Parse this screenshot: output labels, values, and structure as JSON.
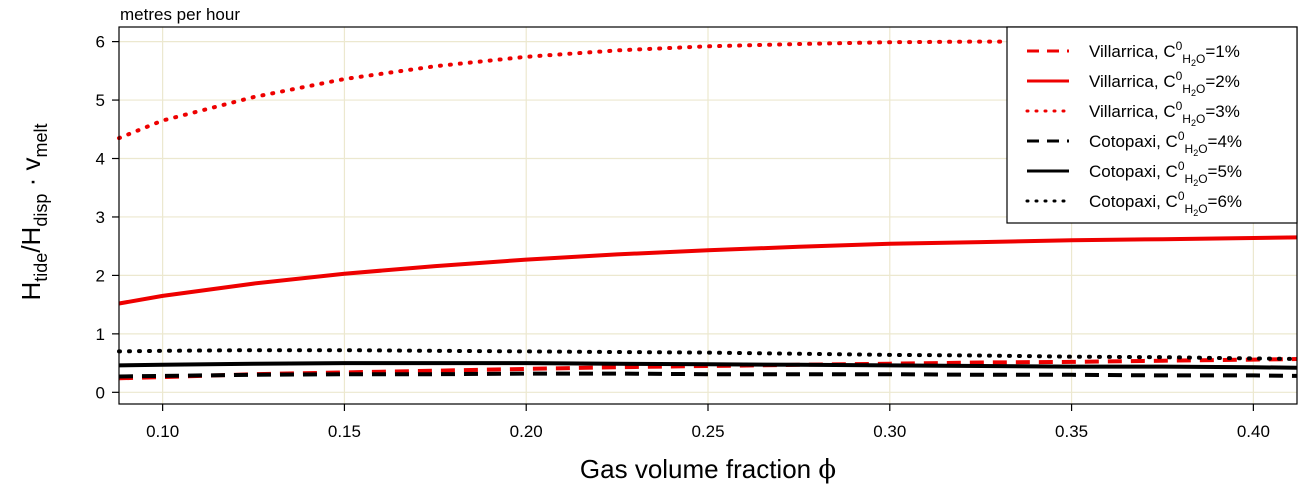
{
  "chart_data": {
    "type": "line",
    "unit_note": "metres per hour",
    "xlabel": {
      "text": "Gas volume fraction ",
      "symbol": "ϕ"
    },
    "ylabel": {
      "H": "H",
      "tide": "tide",
      "slash": "/H",
      "disp": "disp",
      "dot": " · v",
      "melt": "melt"
    },
    "xlim": [
      0.088,
      0.412
    ],
    "ylim": [
      -0.2,
      6.25
    ],
    "x_ticks": [
      0.1,
      0.15,
      0.2,
      0.25,
      0.3,
      0.35,
      0.4
    ],
    "x_tick_labels": [
      "0.10",
      "0.15",
      "0.20",
      "0.25",
      "0.30",
      "0.35",
      "0.40"
    ],
    "y_ticks": [
      0,
      1,
      2,
      3,
      4,
      5,
      6
    ],
    "y_tick_labels": [
      "0",
      "1",
      "2",
      "3",
      "4",
      "5",
      "6"
    ],
    "grid": true,
    "legend_position": "top-right",
    "x": [
      0.088,
      0.1,
      0.125,
      0.15,
      0.175,
      0.2,
      0.225,
      0.25,
      0.275,
      0.3,
      0.325,
      0.35,
      0.375,
      0.4,
      0.412
    ],
    "series": [
      {
        "volcano": "Villarrica",
        "pct": "1%",
        "color": "#ee0000",
        "dash": "14,9",
        "values": [
          0.24,
          0.26,
          0.31,
          0.34,
          0.37,
          0.4,
          0.43,
          0.45,
          0.47,
          0.49,
          0.51,
          0.52,
          0.54,
          0.56,
          0.57
        ]
      },
      {
        "volcano": "Villarrica",
        "pct": "2%",
        "color": "#ee0000",
        "dash": "",
        "values": [
          1.52,
          1.65,
          1.86,
          2.03,
          2.16,
          2.27,
          2.36,
          2.43,
          2.49,
          2.54,
          2.57,
          2.6,
          2.62,
          2.64,
          2.65
        ]
      },
      {
        "volcano": "Villarrica",
        "pct": "3%",
        "color": "#ee0000",
        "dash": "1,9",
        "values": [
          4.35,
          4.65,
          5.05,
          5.36,
          5.58,
          5.74,
          5.85,
          5.92,
          5.96,
          5.99,
          6.0,
          6.0,
          6.0,
          6.0,
          6.0
        ]
      },
      {
        "volcano": "Cotopaxi",
        "pct": "4%",
        "color": "#000000",
        "dash": "14,9",
        "values": [
          0.27,
          0.28,
          0.3,
          0.31,
          0.31,
          0.32,
          0.32,
          0.31,
          0.31,
          0.31,
          0.3,
          0.3,
          0.29,
          0.29,
          0.28
        ]
      },
      {
        "volcano": "Cotopaxi",
        "pct": "5%",
        "color": "#000000",
        "dash": "",
        "values": [
          0.46,
          0.47,
          0.49,
          0.5,
          0.5,
          0.5,
          0.49,
          0.48,
          0.47,
          0.46,
          0.45,
          0.44,
          0.44,
          0.43,
          0.42
        ]
      },
      {
        "volcano": "Cotopaxi",
        "pct": "6%",
        "color": "#000000",
        "dash": "1,9",
        "values": [
          0.7,
          0.71,
          0.72,
          0.72,
          0.71,
          0.7,
          0.69,
          0.68,
          0.66,
          0.64,
          0.63,
          0.61,
          0.6,
          0.58,
          0.57
        ]
      }
    ],
    "legend_sym": {
      "C": "C",
      "sup": "0",
      "sub": "H",
      "sub2": "2",
      "subO": "O"
    }
  }
}
